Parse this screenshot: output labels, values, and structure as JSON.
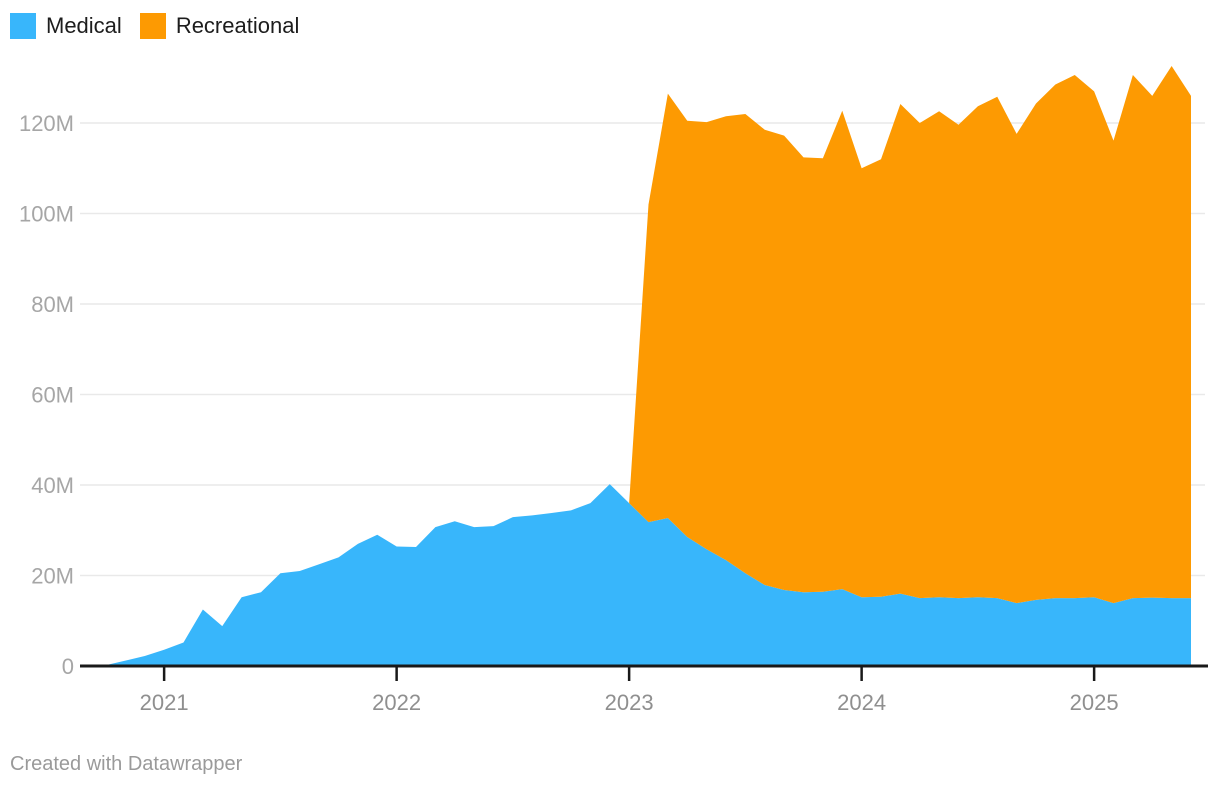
{
  "legend": {
    "items": [
      {
        "label": "Medical"
      },
      {
        "label": "Recreational"
      }
    ]
  },
  "footer": {
    "credit": "Created with Datawrapper"
  },
  "colors": {
    "medical": "#38b6fb",
    "recreational": "#fd9a02",
    "gridline": "#e9e9e9",
    "axis_line": "#191919",
    "y_label": "#a6a6a6",
    "x_label": "#8f8f8f",
    "legend_text": "#1d1d1d",
    "footer_text": "#9a9a9a",
    "background": "#ffffff"
  },
  "chart_data": {
    "type": "area",
    "stacked": true,
    "title": "",
    "xlabel": "",
    "ylabel": "",
    "grid": "horizontal",
    "legend_position": "top-left",
    "ylim": [
      0,
      133
    ],
    "y_ticks": {
      "values": [
        0,
        20,
        40,
        60,
        80,
        100,
        120
      ],
      "labels": [
        "0",
        "20M",
        "40M",
        "60M",
        "80M",
        "100M",
        "120M"
      ]
    },
    "x_ticks": {
      "labels": [
        "2021",
        "2022",
        "2023",
        "2024",
        "2025"
      ],
      "month_indices": [
        3,
        15,
        27,
        39,
        51
      ]
    },
    "months": [
      "2020-10",
      "2020-11",
      "2020-12",
      "2021-01",
      "2021-02",
      "2021-03",
      "2021-04",
      "2021-05",
      "2021-06",
      "2021-07",
      "2021-08",
      "2021-09",
      "2021-10",
      "2021-11",
      "2021-12",
      "2022-01",
      "2022-02",
      "2022-03",
      "2022-04",
      "2022-05",
      "2022-06",
      "2022-07",
      "2022-08",
      "2022-09",
      "2022-10",
      "2022-11",
      "2022-12",
      "2023-01",
      "2023-02",
      "2023-03",
      "2023-04",
      "2023-05",
      "2023-06",
      "2023-07",
      "2023-08",
      "2023-09",
      "2023-10",
      "2023-11",
      "2023-12",
      "2024-01",
      "2024-02",
      "2024-03",
      "2024-04",
      "2024-05",
      "2024-06",
      "2024-07",
      "2024-08",
      "2024-09",
      "2024-10",
      "2024-11",
      "2024-12",
      "2025-01",
      "2025-02",
      "2025-03",
      "2025-04",
      "2025-05",
      "2025-06"
    ],
    "value_unit": "M",
    "series": [
      {
        "name": "Medical",
        "color": "#38b6fb",
        "values": [
          0.2,
          1.2,
          2.2,
          3.6,
          5.2,
          12.5,
          8.8,
          15.2,
          16.3,
          20.5,
          21.0,
          22.5,
          24.0,
          27.0,
          29.0,
          26.4,
          26.3,
          30.7,
          32.0,
          30.7,
          30.9,
          32.9,
          33.3,
          33.8,
          34.4,
          36.0,
          40.2,
          36.0,
          31.8,
          32.7,
          28.5,
          25.8,
          23.4,
          20.5,
          17.9,
          16.8,
          16.3,
          16.4,
          17.0,
          15.2,
          15.3,
          16.0,
          15.0,
          15.2,
          15.0,
          15.2,
          15.0,
          13.9,
          14.6,
          15.0,
          15.0,
          15.2,
          13.9,
          15.0,
          15.1,
          15.0,
          15.0
        ]
      },
      {
        "name": "Recreational",
        "color": "#fd9a02",
        "values": [
          null,
          null,
          null,
          null,
          null,
          null,
          null,
          null,
          null,
          null,
          null,
          null,
          null,
          null,
          null,
          null,
          null,
          null,
          null,
          null,
          null,
          null,
          null,
          null,
          null,
          null,
          null,
          0,
          70.2,
          93.8,
          92.0,
          94.4,
          98.1,
          101.5,
          100.6,
          100.4,
          96.1,
          95.8,
          105.7,
          94.8,
          96.7,
          108.2,
          105.0,
          107.4,
          104.6,
          108.5,
          110.8,
          103.7,
          109.7,
          113.5,
          115.6,
          111.8,
          102.2,
          115.6,
          110.9,
          117.6,
          111.0
        ]
      }
    ]
  }
}
